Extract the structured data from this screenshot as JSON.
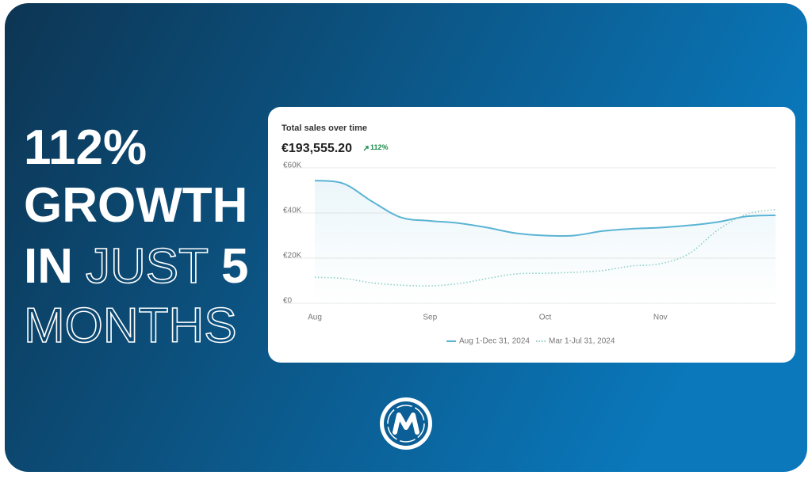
{
  "headline": {
    "line1": "112%",
    "line2": "GROWTH",
    "line3a": "IN",
    "line3b": "JUST",
    "line3c": "5",
    "line4": "MONTHS"
  },
  "chart_data": {
    "type": "line",
    "title": "Total sales over time",
    "total": "€193,555.20",
    "change": "112%",
    "categories": [
      "Aug",
      null,
      null,
      null,
      "Sep",
      null,
      null,
      null,
      "Oct",
      null,
      null,
      null,
      "Nov",
      null,
      null,
      null,
      null
    ],
    "series": [
      {
        "name": "Aug 1-Dec 31, 2024",
        "color": "#5bb4d4",
        "style": "solid",
        "values": [
          54400,
          53000,
          45000,
          38000,
          36500,
          35500,
          33500,
          31000,
          30000,
          30000,
          32000,
          33000,
          33500,
          34500,
          36000,
          38500,
          39000
        ]
      },
      {
        "name": "Mar 1-Jul 31, 2024",
        "color": "#8ccfc6",
        "style": "dotted",
        "values": [
          11500,
          11000,
          9000,
          8000,
          7700,
          8700,
          11000,
          13000,
          13300,
          13700,
          14500,
          16500,
          17500,
          22000,
          32500,
          39500,
          41500
        ]
      }
    ],
    "ylim": [
      0,
      60000
    ],
    "yticks": [
      {
        "value": 0,
        "label": "€0"
      },
      {
        "value": 20000,
        "label": "€20K"
      },
      {
        "value": 40000,
        "label": "€40K"
      },
      {
        "value": 60000,
        "label": "€60K"
      }
    ],
    "grid": true,
    "legend": "bottom"
  }
}
